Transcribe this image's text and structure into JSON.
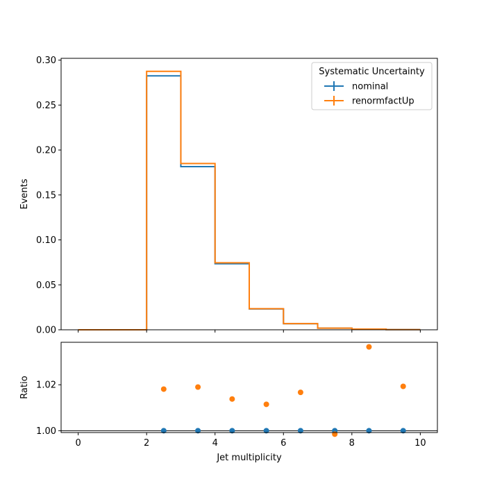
{
  "chart_data": [
    {
      "type": "line",
      "panel": "main",
      "xlim": [
        -0.5,
        10.5
      ],
      "ylim": [
        0,
        0.302
      ],
      "xlabel": "",
      "ylabel": "Events",
      "x_edges": [
        0,
        1,
        2,
        3,
        4,
        5,
        6,
        7,
        8,
        9,
        10
      ],
      "xticks": [
        0,
        2,
        4,
        6,
        8,
        10
      ],
      "yticks": [
        0.0,
        0.05,
        0.1,
        0.15,
        0.2,
        0.25,
        0.3
      ],
      "ytick_labels": [
        "0.00",
        "0.05",
        "0.10",
        "0.15",
        "0.20",
        "0.25",
        "0.30"
      ],
      "legend": {
        "title": "Systematic Uncertainty",
        "placement": "top-right"
      },
      "series": [
        {
          "name": "nominal",
          "color": "#1f77b4",
          "values": [
            0.0,
            0.0,
            0.2825,
            0.1815,
            0.0735,
            0.0232,
            0.0068,
            0.0018,
            0.0008,
            0.0002
          ]
        },
        {
          "name": "renormfactUp",
          "color": "#ff7f0e",
          "values": [
            0.0,
            0.0,
            0.2875,
            0.185,
            0.0745,
            0.0235,
            0.0069,
            0.0018,
            0.0008,
            0.0002
          ]
        }
      ],
      "grid": false
    },
    {
      "type": "scatter",
      "panel": "ratio",
      "xlim": [
        -0.5,
        10.5
      ],
      "ylim": [
        0.9992,
        1.0385
      ],
      "xlabel": "Jet multiplicity",
      "ylabel": "Ratio",
      "xticks": [
        0,
        2,
        4,
        6,
        8,
        10
      ],
      "xtick_labels": [
        "0",
        "2",
        "4",
        "6",
        "8",
        "10"
      ],
      "yticks": [
        1.0,
        1.02
      ],
      "ytick_labels": [
        "1.00",
        "1.02"
      ],
      "reference_line": 1.0,
      "series": [
        {
          "name": "nominal",
          "color": "#1f77b4",
          "x": [
            2.5,
            3.5,
            4.5,
            5.5,
            6.5,
            7.5,
            8.5,
            9.5
          ],
          "y": [
            1.0,
            1.0,
            1.0,
            1.0,
            1.0,
            1.0,
            1.0,
            1.0
          ]
        },
        {
          "name": "renormfactUp",
          "color": "#ff7f0e",
          "x": [
            2.5,
            3.5,
            4.5,
            5.5,
            6.5,
            7.5,
            8.5,
            9.5
          ],
          "y": [
            1.0181,
            1.019,
            1.0138,
            1.0115,
            1.0167,
            0.9985,
            1.0365,
            1.0193
          ]
        }
      ],
      "grid": false
    }
  ]
}
